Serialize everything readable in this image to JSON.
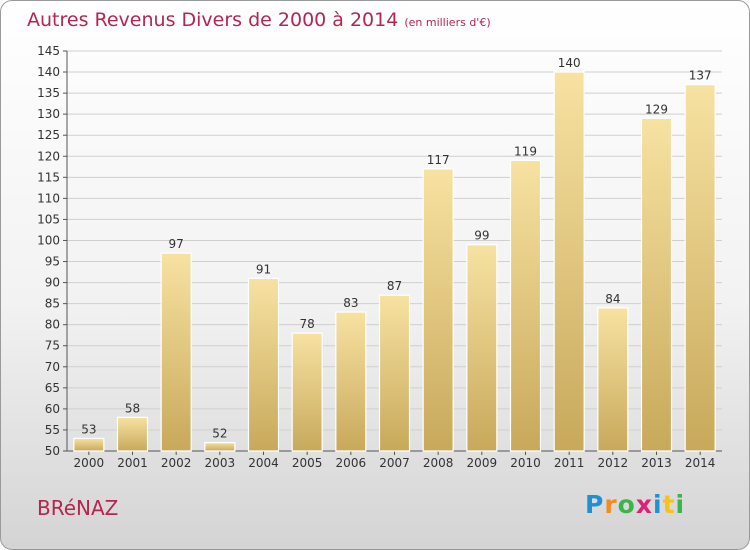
{
  "title": {
    "main": "Autres Revenus Divers de 2000 à 2014",
    "unit": "(en milliers d'€)"
  },
  "place": "BRéNAZ",
  "brand": {
    "letters": [
      "P",
      "r",
      "o",
      "x",
      "i",
      "t",
      "i"
    ],
    "colors": [
      "#1f8fd6",
      "#f28c1e",
      "#3ab54a",
      "#e01f7a",
      "#1f8fd6",
      "#f7c21a",
      "#3ab54a"
    ]
  },
  "colors": {
    "accent": "#b5254f",
    "bar_light": "#f7e2a2",
    "bar_dark": "#c8a95b",
    "grid": "#cfcfcf"
  },
  "chart_data": {
    "type": "bar",
    "title": "Autres Revenus Divers de 2000 à 2014",
    "subtitle": "(en milliers d'€)",
    "categories": [
      "2000",
      "2001",
      "2002",
      "2003",
      "2004",
      "2005",
      "2006",
      "2007",
      "2008",
      "2009",
      "2010",
      "2011",
      "2012",
      "2013",
      "2014"
    ],
    "values": [
      53,
      58,
      97,
      52,
      91,
      78,
      83,
      87,
      117,
      99,
      119,
      140,
      84,
      129,
      137
    ],
    "ylim": [
      50,
      145
    ],
    "ytick_step": 5,
    "grid": true,
    "legend": "none"
  }
}
